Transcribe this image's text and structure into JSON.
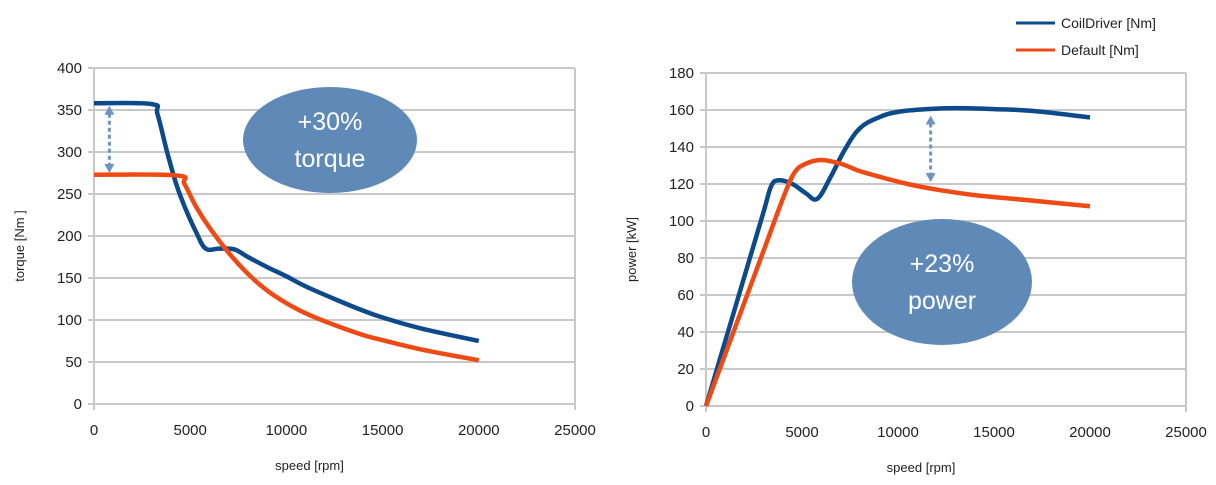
{
  "legend": [
    {
      "label": "CoilDriver [Nm]",
      "color": "#0d4a8c"
    },
    {
      "label": "Default  [Nm]",
      "color": "#f04a14"
    }
  ],
  "chart_data": [
    {
      "type": "line",
      "name": "torque",
      "xlabel": "speed [rpm]",
      "ylabel": "torque [Nm ]",
      "xlim": [
        0,
        25000
      ],
      "ylim": [
        0,
        400
      ],
      "xticks": [
        0,
        5000,
        10000,
        15000,
        20000,
        25000
      ],
      "yticks": [
        0,
        50,
        100,
        150,
        200,
        250,
        300,
        350,
        400
      ],
      "grid": true,
      "annotation": {
        "line1": "+30%",
        "line2": "torque",
        "arrow_x": 800,
        "arrow_from": 355,
        "arrow_to": 275
      },
      "series": [
        {
          "name": "CoilDriver [Nm]",
          "x": [
            0,
            3000,
            3300,
            3800,
            4300,
            4800,
            5300,
            5800,
            6500,
            7300,
            8000,
            9000,
            10000,
            11000,
            12500,
            14000,
            15000,
            17000,
            20000
          ],
          "y": [
            358,
            357,
            345,
            300,
            260,
            230,
            205,
            185,
            185,
            184,
            175,
            163,
            152,
            140,
            125,
            111,
            103,
            90,
            75
          ]
        },
        {
          "name": "Default  [Nm]",
          "x": [
            0,
            4300,
            4700,
            5300,
            6000,
            7000,
            8000,
            9000,
            10000,
            11000,
            12500,
            14000,
            15000,
            17000,
            20000
          ],
          "y": [
            273,
            272,
            262,
            235,
            210,
            180,
            155,
            135,
            120,
            108,
            94,
            82,
            76,
            65,
            52
          ]
        }
      ]
    },
    {
      "type": "line",
      "name": "power",
      "xlabel": "speed [rpm]",
      "ylabel": "power [kW]",
      "xlim": [
        0,
        25000
      ],
      "ylim": [
        0,
        180
      ],
      "xticks": [
        0,
        5000,
        10000,
        15000,
        20000,
        25000
      ],
      "yticks": [
        0,
        20,
        40,
        60,
        80,
        100,
        120,
        140,
        160,
        180
      ],
      "grid": true,
      "annotation": {
        "line1": "+23%",
        "line2": "power",
        "arrow_x": 11700,
        "arrow_from": 157,
        "arrow_to": 121
      },
      "series": [
        {
          "name": "CoilDriver [Nm]",
          "x": [
            0,
            1000,
            2000,
            3000,
            3400,
            3800,
            4500,
            5200,
            5800,
            6500,
            7200,
            8000,
            9000,
            10000,
            11500,
            13000,
            15000,
            17000,
            20000
          ],
          "y": [
            0,
            35,
            70,
            105,
            119,
            122,
            120,
            115,
            112,
            124,
            138,
            150,
            156,
            159,
            160.5,
            161,
            160.5,
            159.5,
            156
          ]
        },
        {
          "name": "Default  [Nm]",
          "x": [
            0,
            1000,
            2000,
            3000,
            4000,
            4600,
            5200,
            6000,
            7000,
            8000,
            9000,
            10500,
            12000,
            14000,
            16000,
            18000,
            20000
          ],
          "y": [
            0,
            28,
            56,
            84,
            112,
            126,
            131,
            133,
            131,
            127,
            124,
            120,
            117,
            114,
            112,
            110,
            108
          ]
        }
      ]
    }
  ]
}
